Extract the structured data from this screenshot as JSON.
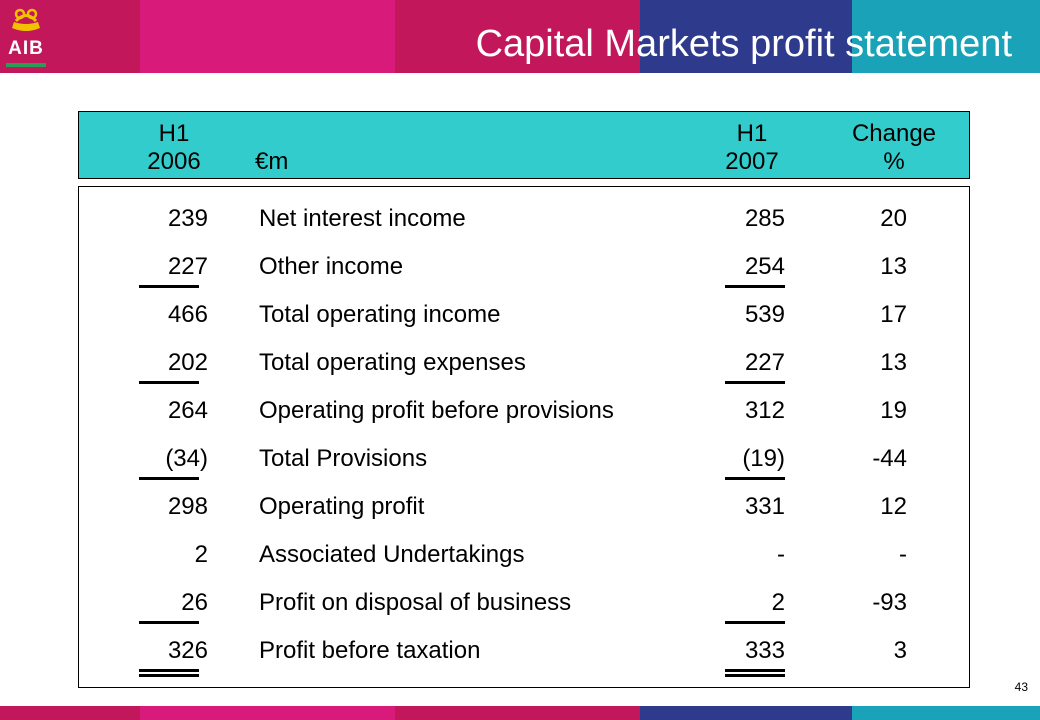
{
  "brand": {
    "name": "AIB"
  },
  "title": "Capital Markets profit statement",
  "page_number": "43",
  "colors": {
    "magenta": "#c2185b",
    "pink": "#d81b7a",
    "navy": "#2e3a8c",
    "teal": "#1aa3b8",
    "header_bg": "#33cccc"
  },
  "header": {
    "col1_line1": "H1",
    "col1_line2": "2006",
    "unit": "€m",
    "col3_line1": "H1",
    "col3_line2": "2007",
    "col4_line1": "Change",
    "col4_line2": "%"
  },
  "rows": [
    {
      "h1_2006": "239",
      "label": "Net interest income",
      "h1_2007": "285",
      "change": "20",
      "rule_below": "none"
    },
    {
      "h1_2006": "227",
      "label": "Other income",
      "h1_2007": "254",
      "change": "13",
      "rule_below": "single"
    },
    {
      "h1_2006": "466",
      "label": "Total operating income",
      "h1_2007": "539",
      "change": "17",
      "rule_below": "none"
    },
    {
      "h1_2006": "202",
      "label": "Total operating expenses",
      "h1_2007": "227",
      "change": "13",
      "rule_below": "single"
    },
    {
      "h1_2006": "264",
      "label": "Operating profit before provisions",
      "h1_2007": "312",
      "change": "19",
      "rule_below": "none"
    },
    {
      "h1_2006": "(34)",
      "label": "Total Provisions",
      "h1_2007": "(19)",
      "change": "-44",
      "rule_below": "single"
    },
    {
      "h1_2006": "298",
      "label": "Operating profit",
      "h1_2007": "331",
      "change": "12",
      "rule_below": "none"
    },
    {
      "h1_2006": "2",
      "label": "Associated Undertakings",
      "h1_2007": "-",
      "change": "-",
      "rule_below": "none"
    },
    {
      "h1_2006": "26",
      "label": "Profit on disposal of business",
      "h1_2007": "2",
      "change": "-93",
      "rule_below": "single"
    },
    {
      "h1_2006": "326",
      "label": "Profit before taxation",
      "h1_2007": "333",
      "change": "3",
      "rule_below": "double"
    }
  ]
}
